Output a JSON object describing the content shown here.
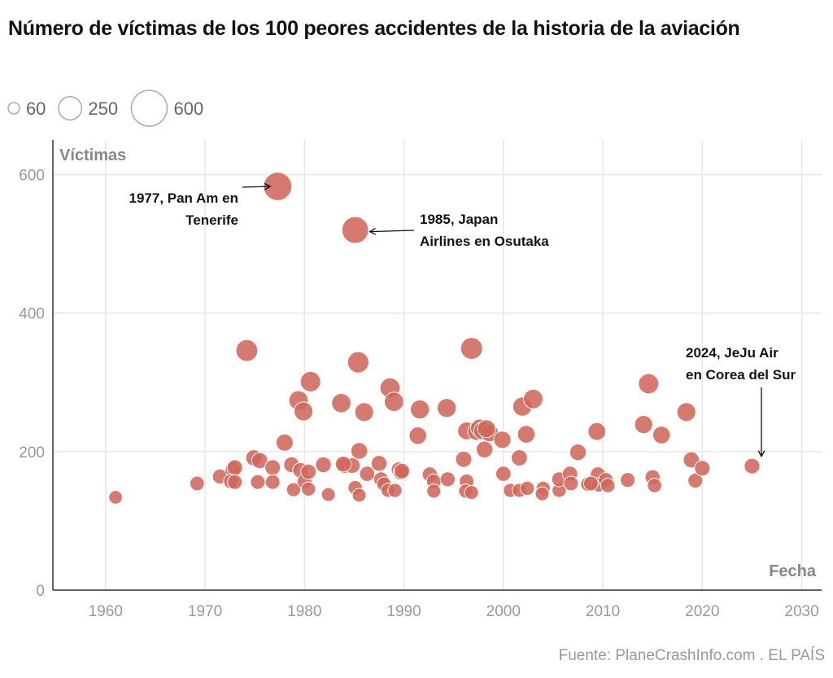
{
  "title": "Número de víctimas de los 100 peores accidentes de la historia de la aviación",
  "source": "Fuente: PlaneCrashInfo.com . EL PAÍS",
  "colors": {
    "bubble": "#d0665a",
    "grid": "#e6e6e6",
    "axis": "#333333"
  },
  "chart_data": {
    "type": "scatter",
    "xlabel": "Fecha",
    "ylabel": "Víctimas",
    "xlim": [
      1954.7,
      2032
    ],
    "ylim": [
      0,
      650
    ],
    "xticks": [
      1960,
      1970,
      1980,
      1990,
      2000,
      2010,
      2020,
      2030
    ],
    "yticks": [
      0,
      200,
      400,
      600
    ],
    "grid": true,
    "size_legend": [
      60,
      250,
      600
    ],
    "size_legend_labels": [
      "60",
      "250",
      "600"
    ],
    "annotations": [
      {
        "text": [
          "1977, Pan Am en",
          "Tenerife"
        ],
        "x": 1977.3,
        "y": 583
      },
      {
        "text": [
          "1985, Japan",
          "Airlines en Osutaka"
        ],
        "x": 1985.1,
        "y": 520
      },
      {
        "text": [
          "2024, JeJu Air",
          "en Corea del Sur"
        ],
        "x": 2025,
        "y": 179
      }
    ],
    "points": [
      [
        1961,
        134
      ],
      [
        1969.2,
        154
      ],
      [
        1971.5,
        164
      ],
      [
        1972.8,
        174
      ],
      [
        1973,
        177
      ],
      [
        1972.6,
        157
      ],
      [
        1973,
        156
      ],
      [
        1974.2,
        346
      ],
      [
        1974.9,
        191
      ],
      [
        1975.5,
        187
      ],
      [
        1975.3,
        156
      ],
      [
        1976.8,
        177
      ],
      [
        1976.8,
        156
      ],
      [
        1977.3,
        583
      ],
      [
        1978,
        213
      ],
      [
        1978.7,
        181
      ],
      [
        1978.9,
        145
      ],
      [
        1979.4,
        274
      ],
      [
        1979.6,
        173
      ],
      [
        1979.9,
        258
      ],
      [
        1980,
        157
      ],
      [
        1980.4,
        171
      ],
      [
        1980.6,
        301
      ],
      [
        1980.4,
        146
      ],
      [
        1981.9,
        181
      ],
      [
        1982.4,
        138
      ],
      [
        1983.7,
        270
      ],
      [
        1984,
        180
      ],
      [
        1984.8,
        180
      ],
      [
        1985.1,
        148
      ],
      [
        1985.4,
        329
      ],
      [
        1985.1,
        520
      ],
      [
        1985.5,
        201
      ],
      [
        1986,
        257
      ],
      [
        1985.5,
        137
      ],
      [
        1986.3,
        168
      ],
      [
        1987.5,
        183
      ],
      [
        1987.7,
        160
      ],
      [
        1988,
        153
      ],
      [
        1988.6,
        292
      ],
      [
        1989,
        272
      ],
      [
        1988.4,
        144
      ],
      [
        1989.1,
        144
      ],
      [
        1989.5,
        174
      ],
      [
        1989.7,
        170
      ],
      [
        1989.8,
        172
      ],
      [
        1991.4,
        223
      ],
      [
        1991.6,
        261
      ],
      [
        1992.6,
        167
      ],
      [
        1993,
        157
      ],
      [
        1993,
        143
      ],
      [
        1994.3,
        263
      ],
      [
        1994.4,
        160
      ],
      [
        1996,
        189
      ],
      [
        1996.3,
        230
      ],
      [
        1996.3,
        157
      ],
      [
        1996.2,
        143
      ],
      [
        1996.8,
        141
      ],
      [
        1996.8,
        349
      ],
      [
        1997.3,
        229
      ],
      [
        1997.6,
        234
      ],
      [
        1997.9,
        230
      ],
      [
        1998.1,
        203
      ],
      [
        1998.6,
        227
      ],
      [
        1999.9,
        217
      ],
      [
        2000,
        168
      ],
      [
        2000.7,
        144
      ],
      [
        2001.6,
        144
      ],
      [
        2001.6,
        191
      ],
      [
        2001.9,
        265
      ],
      [
        2002.4,
        147
      ],
      [
        2002.3,
        225
      ],
      [
        2003,
        276
      ],
      [
        2004,
        147
      ],
      [
        2003.9,
        139
      ],
      [
        2005.6,
        144
      ],
      [
        2005.6,
        160
      ],
      [
        2006.7,
        168
      ],
      [
        2006.8,
        154
      ],
      [
        2007.5,
        199
      ],
      [
        2008.5,
        153
      ],
      [
        2009.4,
        229
      ],
      [
        2009.5,
        167
      ],
      [
        2009.6,
        152
      ],
      [
        2010.3,
        159
      ],
      [
        2010.5,
        151
      ],
      [
        2012.5,
        159
      ],
      [
        2014.1,
        239
      ],
      [
        2014.6,
        298
      ],
      [
        2015,
        163
      ],
      [
        2015.2,
        151
      ],
      [
        2015.9,
        224
      ],
      [
        2018.4,
        257
      ],
      [
        2018.9,
        188
      ],
      [
        2019.3,
        158
      ],
      [
        2020,
        176
      ],
      [
        2025,
        179
      ],
      [
        1998.3,
        233
      ],
      [
        2008.8,
        154
      ],
      [
        1983.9,
        182
      ]
    ]
  }
}
